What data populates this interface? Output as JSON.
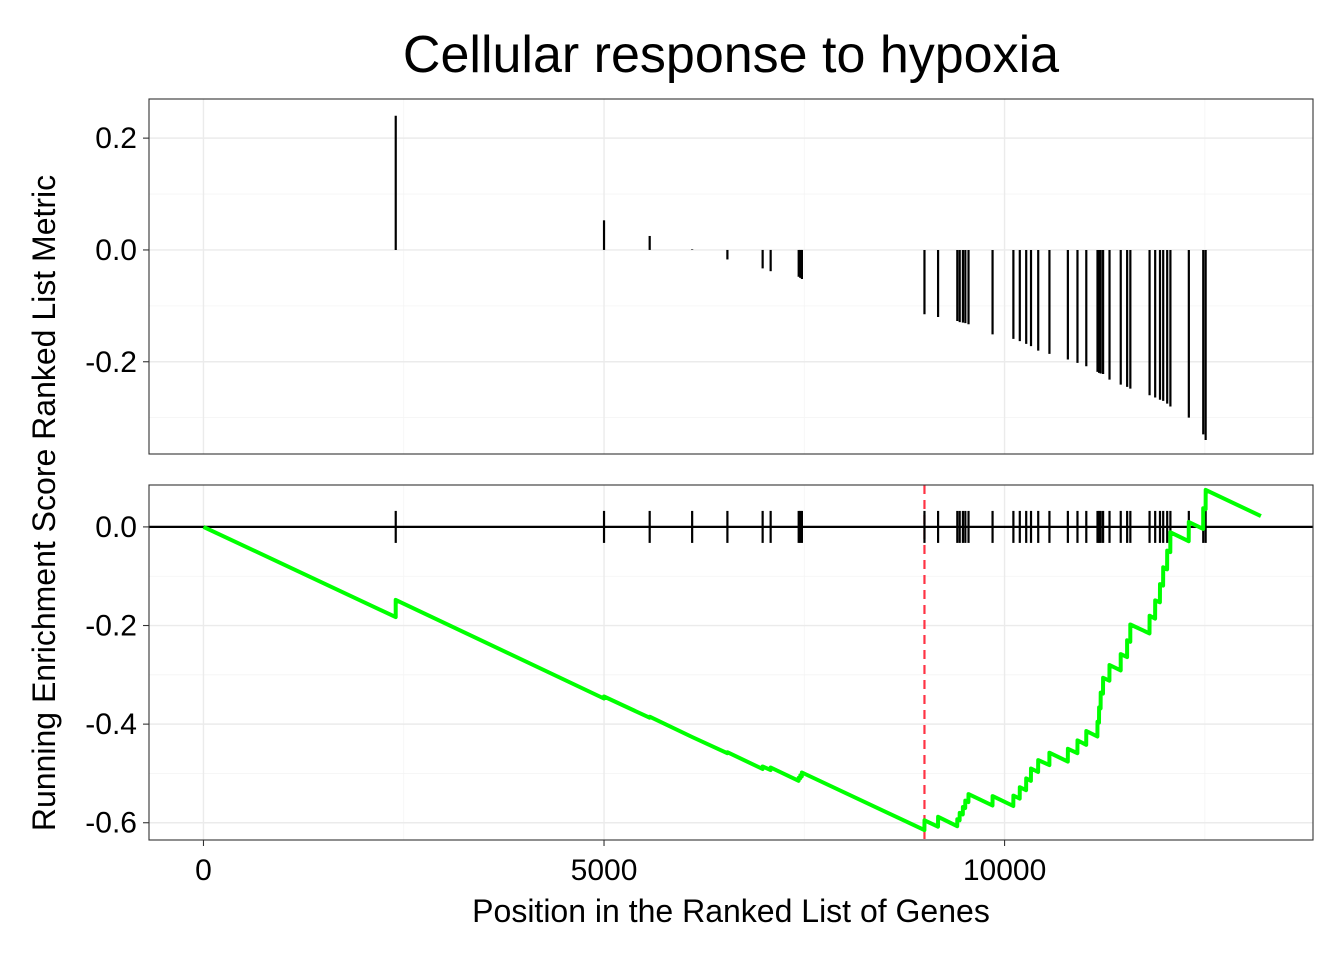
{
  "chart_data": {
    "type": "line",
    "title": "Cellular response to hypoxia",
    "xlabel": "Position in the Ranked List of Genes",
    "ylabel": "Running Enrichment Score Ranked List Metric",
    "xlim": [
      -680,
      13850
    ],
    "x_ticks": [
      0,
      5000,
      10000
    ],
    "x_tick_labels": [
      "0",
      "5000",
      "10000"
    ],
    "total_genes": 13200,
    "peak_position": 9000,
    "colors": {
      "es_line": "#00ff00",
      "peak_line": "#ff3344",
      "bars": "#000000"
    },
    "panels": {
      "metric": {
        "ylim": [
          -0.365,
          0.27
        ],
        "y_ticks": [
          0.2,
          0.0,
          -0.2
        ],
        "y_tick_labels": [
          "0.2",
          "0.0",
          "-0.2"
        ],
        "grid_minor": [
          0.1,
          -0.1,
          -0.3
        ]
      },
      "es": {
        "ylim": [
          -0.635,
          0.085
        ],
        "y_ticks": [
          0.0,
          -0.2,
          -0.4,
          -0.6
        ],
        "y_tick_labels": [
          "0.0",
          "-0.2",
          "-0.4",
          "-0.6"
        ],
        "grid_minor": [
          -0.1,
          -0.3,
          -0.5
        ]
      }
    },
    "series": [
      {
        "name": "Ranked List Metric",
        "type": "bar",
        "x": [
          2400,
          5000,
          5570,
          6100,
          6540,
          6980,
          7080,
          7430,
          7450,
          7470,
          9000,
          9170,
          9410,
          9440,
          9480,
          9510,
          9550,
          9850,
          10110,
          10190,
          10270,
          10330,
          10420,
          10560,
          10790,
          10910,
          11020,
          11160,
          11180,
          11200,
          11230,
          11310,
          11450,
          11530,
          11570,
          11810,
          11880,
          11940,
          11980,
          12030,
          12070,
          12300,
          12480,
          12510
        ],
        "values": [
          0.24,
          0.053,
          0.025,
          0.001,
          -0.017,
          -0.033,
          -0.038,
          -0.048,
          -0.05,
          -0.052,
          -0.115,
          -0.12,
          -0.127,
          -0.129,
          -0.13,
          -0.131,
          -0.133,
          -0.151,
          -0.159,
          -0.163,
          -0.168,
          -0.172,
          -0.18,
          -0.186,
          -0.196,
          -0.202,
          -0.208,
          -0.218,
          -0.22,
          -0.221,
          -0.222,
          -0.232,
          -0.241,
          -0.245,
          -0.248,
          -0.26,
          -0.264,
          -0.268,
          -0.27,
          -0.275,
          -0.28,
          -0.3,
          -0.33,
          -0.34
        ]
      },
      {
        "name": "Running Enrichment Score",
        "type": "line",
        "x": [
          0,
          2399,
          2400,
          4999,
          5000,
          5569,
          5570,
          6099,
          6100,
          6539,
          6540,
          6979,
          6980,
          7079,
          7080,
          7429,
          7430,
          7449,
          7450,
          7469,
          7470,
          8999,
          9000,
          9169,
          9170,
          9409,
          9410,
          9439,
          9440,
          9479,
          9480,
          9509,
          9510,
          9549,
          9550,
          9849,
          9850,
          10109,
          10110,
          10189,
          10190,
          10269,
          10270,
          10329,
          10330,
          10419,
          10420,
          10559,
          10560,
          10789,
          10790,
          10909,
          10910,
          11019,
          11020,
          11159,
          11160,
          11179,
          11180,
          11199,
          11200,
          11229,
          11230,
          11309,
          11310,
          11449,
          11450,
          11529,
          11530,
          11569,
          11570,
          11809,
          11810,
          11879,
          11880,
          11939,
          11940,
          11979,
          11980,
          12029,
          12030,
          12069,
          12070,
          12299,
          12300,
          12479,
          12480,
          12509,
          12510,
          13200
        ],
        "values": [
          0.0,
          -0.183,
          -0.148,
          -0.348,
          -0.344,
          -0.387,
          -0.385,
          -0.426,
          -0.426,
          -0.459,
          -0.457,
          -0.491,
          -0.486,
          -0.493,
          -0.488,
          -0.515,
          -0.509,
          -0.51,
          -0.504,
          -0.506,
          -0.498,
          -0.615,
          -0.595,
          -0.608,
          -0.588,
          -0.607,
          -0.593,
          -0.595,
          -0.58,
          -0.583,
          -0.568,
          -0.57,
          -0.555,
          -0.558,
          -0.542,
          -0.565,
          -0.546,
          -0.566,
          -0.545,
          -0.551,
          -0.528,
          -0.534,
          -0.51,
          -0.515,
          -0.49,
          -0.497,
          -0.473,
          -0.483,
          -0.458,
          -0.476,
          -0.45,
          -0.459,
          -0.433,
          -0.442,
          -0.414,
          -0.425,
          -0.395,
          -0.397,
          -0.366,
          -0.368,
          -0.336,
          -0.338,
          -0.306,
          -0.312,
          -0.28,
          -0.291,
          -0.258,
          -0.264,
          -0.23,
          -0.233,
          -0.198,
          -0.216,
          -0.18,
          -0.186,
          -0.149,
          -0.153,
          -0.116,
          -0.119,
          -0.082,
          -0.086,
          -0.048,
          -0.051,
          -0.011,
          -0.029,
          0.01,
          -0.004,
          0.038,
          0.036,
          0.075,
          0.022
        ]
      }
    ]
  }
}
